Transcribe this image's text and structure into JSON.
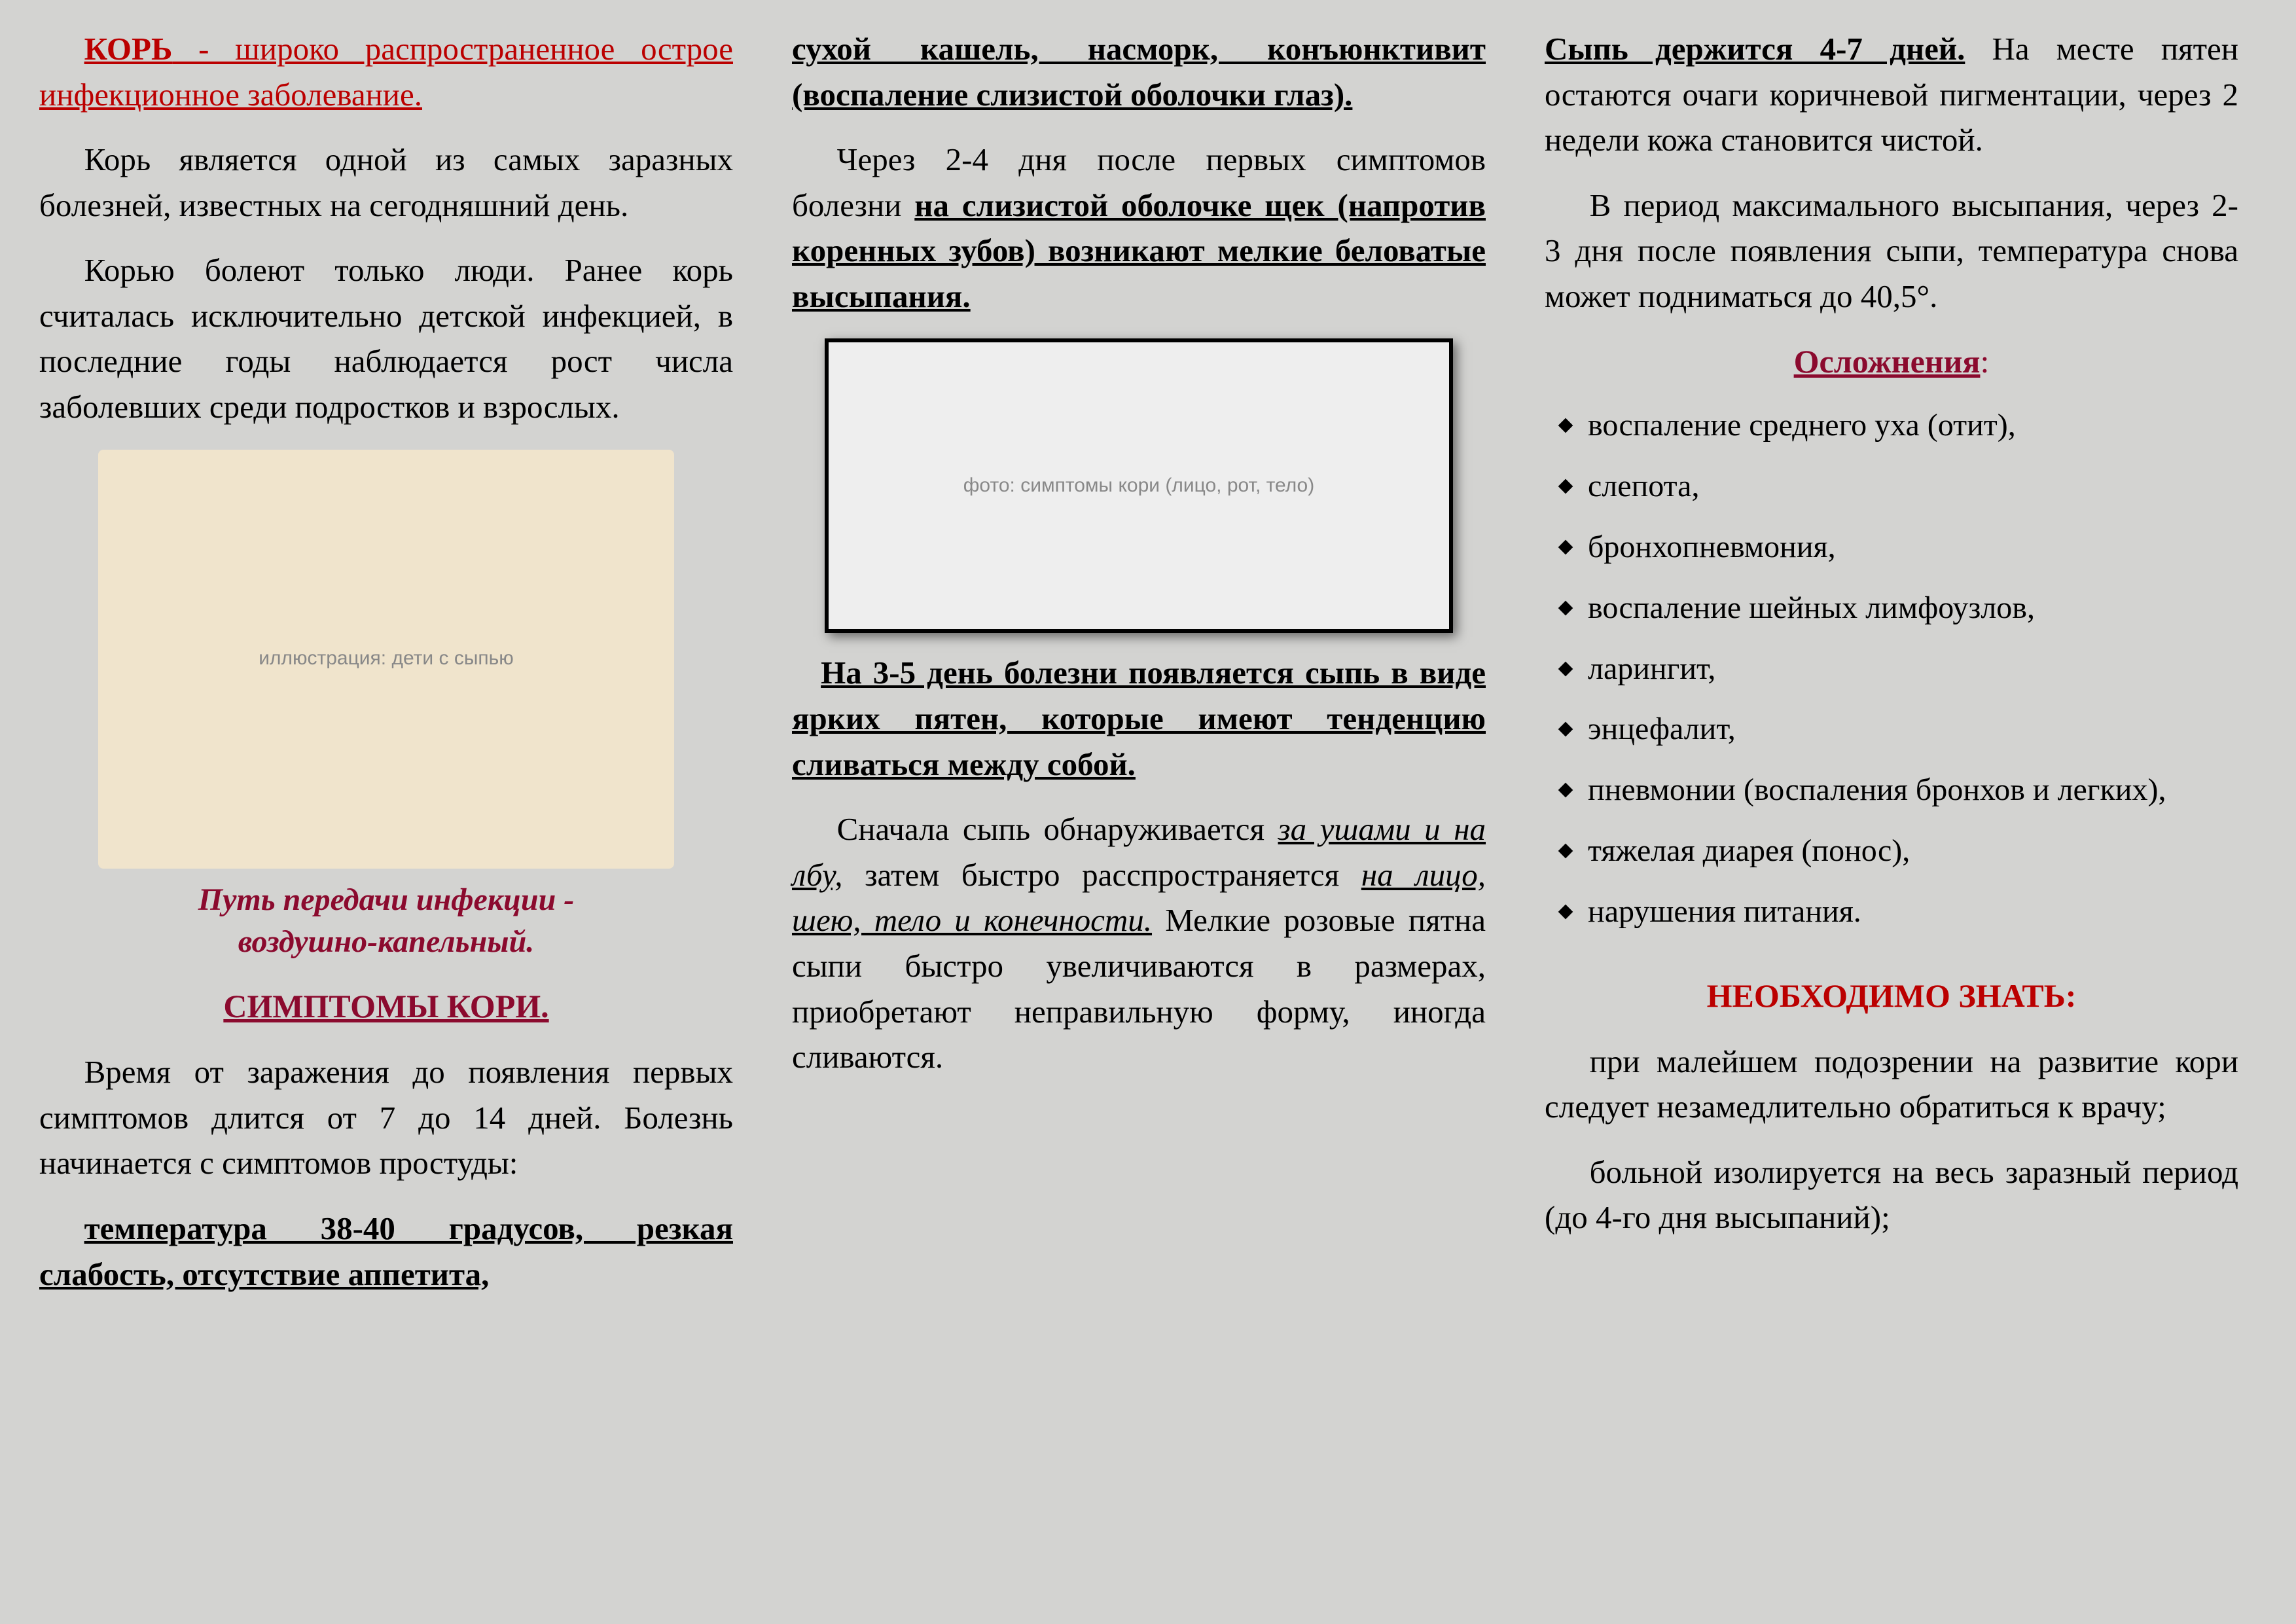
{
  "col1": {
    "title_head": "КОРЬ",
    "title_rest": " -  широко распространенное острое инфекционное заболевание.",
    "p1": "Корь является одной из самых заразных болезней, известных на сегодняшний день.",
    "p2": "Корью болеют только люди.  Ранее корь считалась исключительно детской инфекцией, в последние годы наблюдается рост числа заболевших среди подростков и взрослых.",
    "img_alt": "иллюстрация: дети с сыпью",
    "transmission_l1": "Путь передачи инфекции   -",
    "transmission_l2": "воздушно-капельный.",
    "symptoms_title": "СИМПТОМЫ КОРИ.",
    "p3": "Время от заражения до появления первых симптомов длится от   7 до 14 дней. Болезнь начинается с симптомов простуды:",
    "p4": "температура 38-40 градусов, резкая слабость, отсутствие аппетита,"
  },
  "col2": {
    "p1": "сухой кашель, насморк, конъюнктивит (воспаление слизистой оболочки глаз).",
    "p2_pre": "Через 2-4 дня после первых симптомов болезни ",
    "p2_bold": "на слизистой оболочке щек (напротив коренных зубов) возникают мелкие беловатые высыпания.",
    "img_alt": "фото: симптомы кори (лицо, рот, тело)",
    "p3": "На 3-5 день болезни появляется сыпь в виде ярких пятен, которые имеют тенденцию сливаться между собой.",
    "p4_pre": "Сначала сыпь обнаруживается ",
    "p4_i1": "за ушами и на лбу,",
    "p4_mid": " затем быстро расспространяется ",
    "p4_i2": "на лицо, шею, тело и конечности.",
    "p4_post": " Мелкие розовые пятна сыпи быстро увеличиваются в размерах, приобретают неправильную форму, иногда сливаются."
  },
  "col3": {
    "p1_bold": "Сыпь держится 4-7 дней.",
    "p1_rest": " На месте пятен остаются очаги коричневой пигментации, через 2 недели кожа становится чистой.",
    "p2": "В период максимального высыпания, через 2- 3 дня после появления сыпи, температура снова может подниматься до 40,5°.",
    "complications_title": "Осложнения",
    "complications_colon": ":",
    "complications": [
      " воспаление среднего уха (отит),",
      "слепота,",
      "бронхопневмония,",
      " воспаление шейных лимфоузлов,",
      "ларингит,",
      "энцефалит,",
      " пневмонии (воспаления бронхов и легких),",
      "тяжелая диарея (понос),",
      "нарушения питания."
    ],
    "know_title": "НЕОБХОДИМО ЗНАТЬ:",
    "p3": "при малейшем подозрении на развитие кори следует незамедлительно обратиться к врачу;",
    "p4": "больной изолируется на весь заразный период (до 4-го дня высыпаний);"
  },
  "colors": {
    "accent_red": "#bb0000",
    "accent_darkred": "#8b0a2e",
    "background": "#d3d3d1",
    "text": "#000000"
  }
}
